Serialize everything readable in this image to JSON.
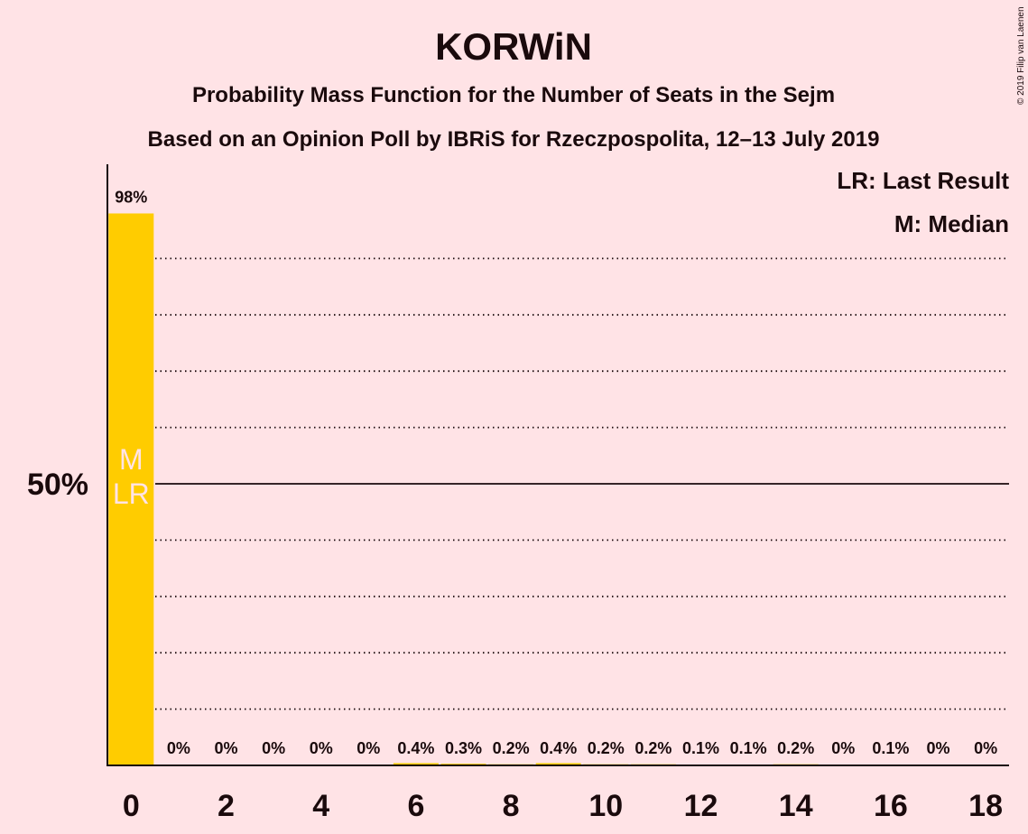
{
  "title": "KORWiN",
  "subtitle1": "Probability Mass Function for the Number of Seats in the Sejm",
  "subtitle2": "Based on an Opinion Poll by IBRiS for Rzeczpospolita, 12–13 July 2019",
  "copyright": "© 2019 Filip van Laenen",
  "legend": {
    "lr": "LR: Last Result",
    "m": "M: Median"
  },
  "colors": {
    "background": "#FFE3E6",
    "bar": "#FFCC00",
    "text": "#1a0a0c",
    "marker_text": "#FFE3E6"
  },
  "chart_data": {
    "type": "bar",
    "categories": [
      0,
      1,
      2,
      3,
      4,
      5,
      6,
      7,
      8,
      9,
      10,
      11,
      12,
      13,
      14,
      15,
      16,
      17,
      18
    ],
    "values": [
      98,
      0,
      0,
      0,
      0,
      0,
      0.4,
      0.3,
      0.2,
      0.4,
      0.2,
      0.2,
      0.1,
      0.1,
      0.2,
      0,
      0.1,
      0,
      0
    ],
    "labels": [
      "98%",
      "0%",
      "0%",
      "0%",
      "0%",
      "0%",
      "0.4%",
      "0.3%",
      "0.2%",
      "0.4%",
      "0.2%",
      "0.2%",
      "0.1%",
      "0.1%",
      "0.2%",
      "0%",
      "0.1%",
      "0%",
      "0%"
    ],
    "x_tick_labels": [
      "0",
      "2",
      "4",
      "6",
      "8",
      "10",
      "12",
      "14",
      "16",
      "18"
    ],
    "x_ticks": [
      0,
      2,
      4,
      6,
      8,
      10,
      12,
      14,
      16,
      18
    ],
    "y_tick_label": "50%",
    "y_tick": 50,
    "ylim": [
      0,
      100
    ],
    "grid": "dotted every 10%, solid at 50%",
    "median": 0,
    "last_result": 0,
    "marker_labels": [
      "M",
      "LR"
    ],
    "legend_position": "top-right"
  }
}
